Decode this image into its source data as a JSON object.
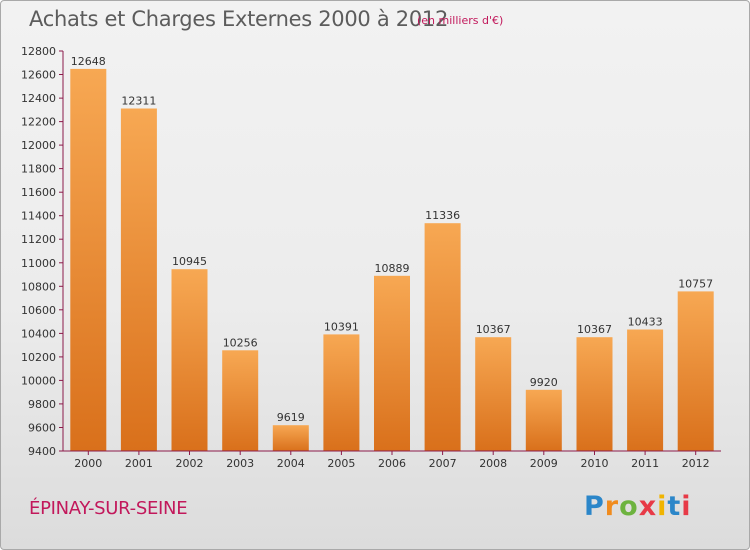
{
  "header": {
    "title": "Achats et Charges Externes 2000 à 2012",
    "subtitle": "(en milliers d'€)"
  },
  "footer": {
    "city": "ÉPINAY-SUR-SEINE",
    "logo": "Proxiti"
  },
  "colors": {
    "bar_light": "#f7a853",
    "bar_dark": "#d9701b",
    "axis": "#8b1a4a",
    "title": "#5c5c5c",
    "accent": "#c2185b"
  },
  "chart_data": {
    "type": "bar",
    "categories": [
      "2000",
      "2001",
      "2002",
      "2003",
      "2004",
      "2005",
      "2006",
      "2007",
      "2008",
      "2009",
      "2010",
      "2011",
      "2012"
    ],
    "values": [
      12648,
      12311,
      10945,
      10256,
      9619,
      10391,
      10889,
      11336,
      10367,
      9920,
      10367,
      10433,
      10757
    ],
    "ylim": [
      9400,
      12800
    ],
    "yticks": [
      9400,
      9600,
      9800,
      10000,
      10200,
      10400,
      10600,
      10800,
      11000,
      11200,
      11400,
      11600,
      11800,
      12000,
      12200,
      12400,
      12600,
      12800
    ],
    "grid": false,
    "title": "Achats et Charges Externes 2000 à 2012",
    "xlabel": "",
    "ylabel": ""
  }
}
